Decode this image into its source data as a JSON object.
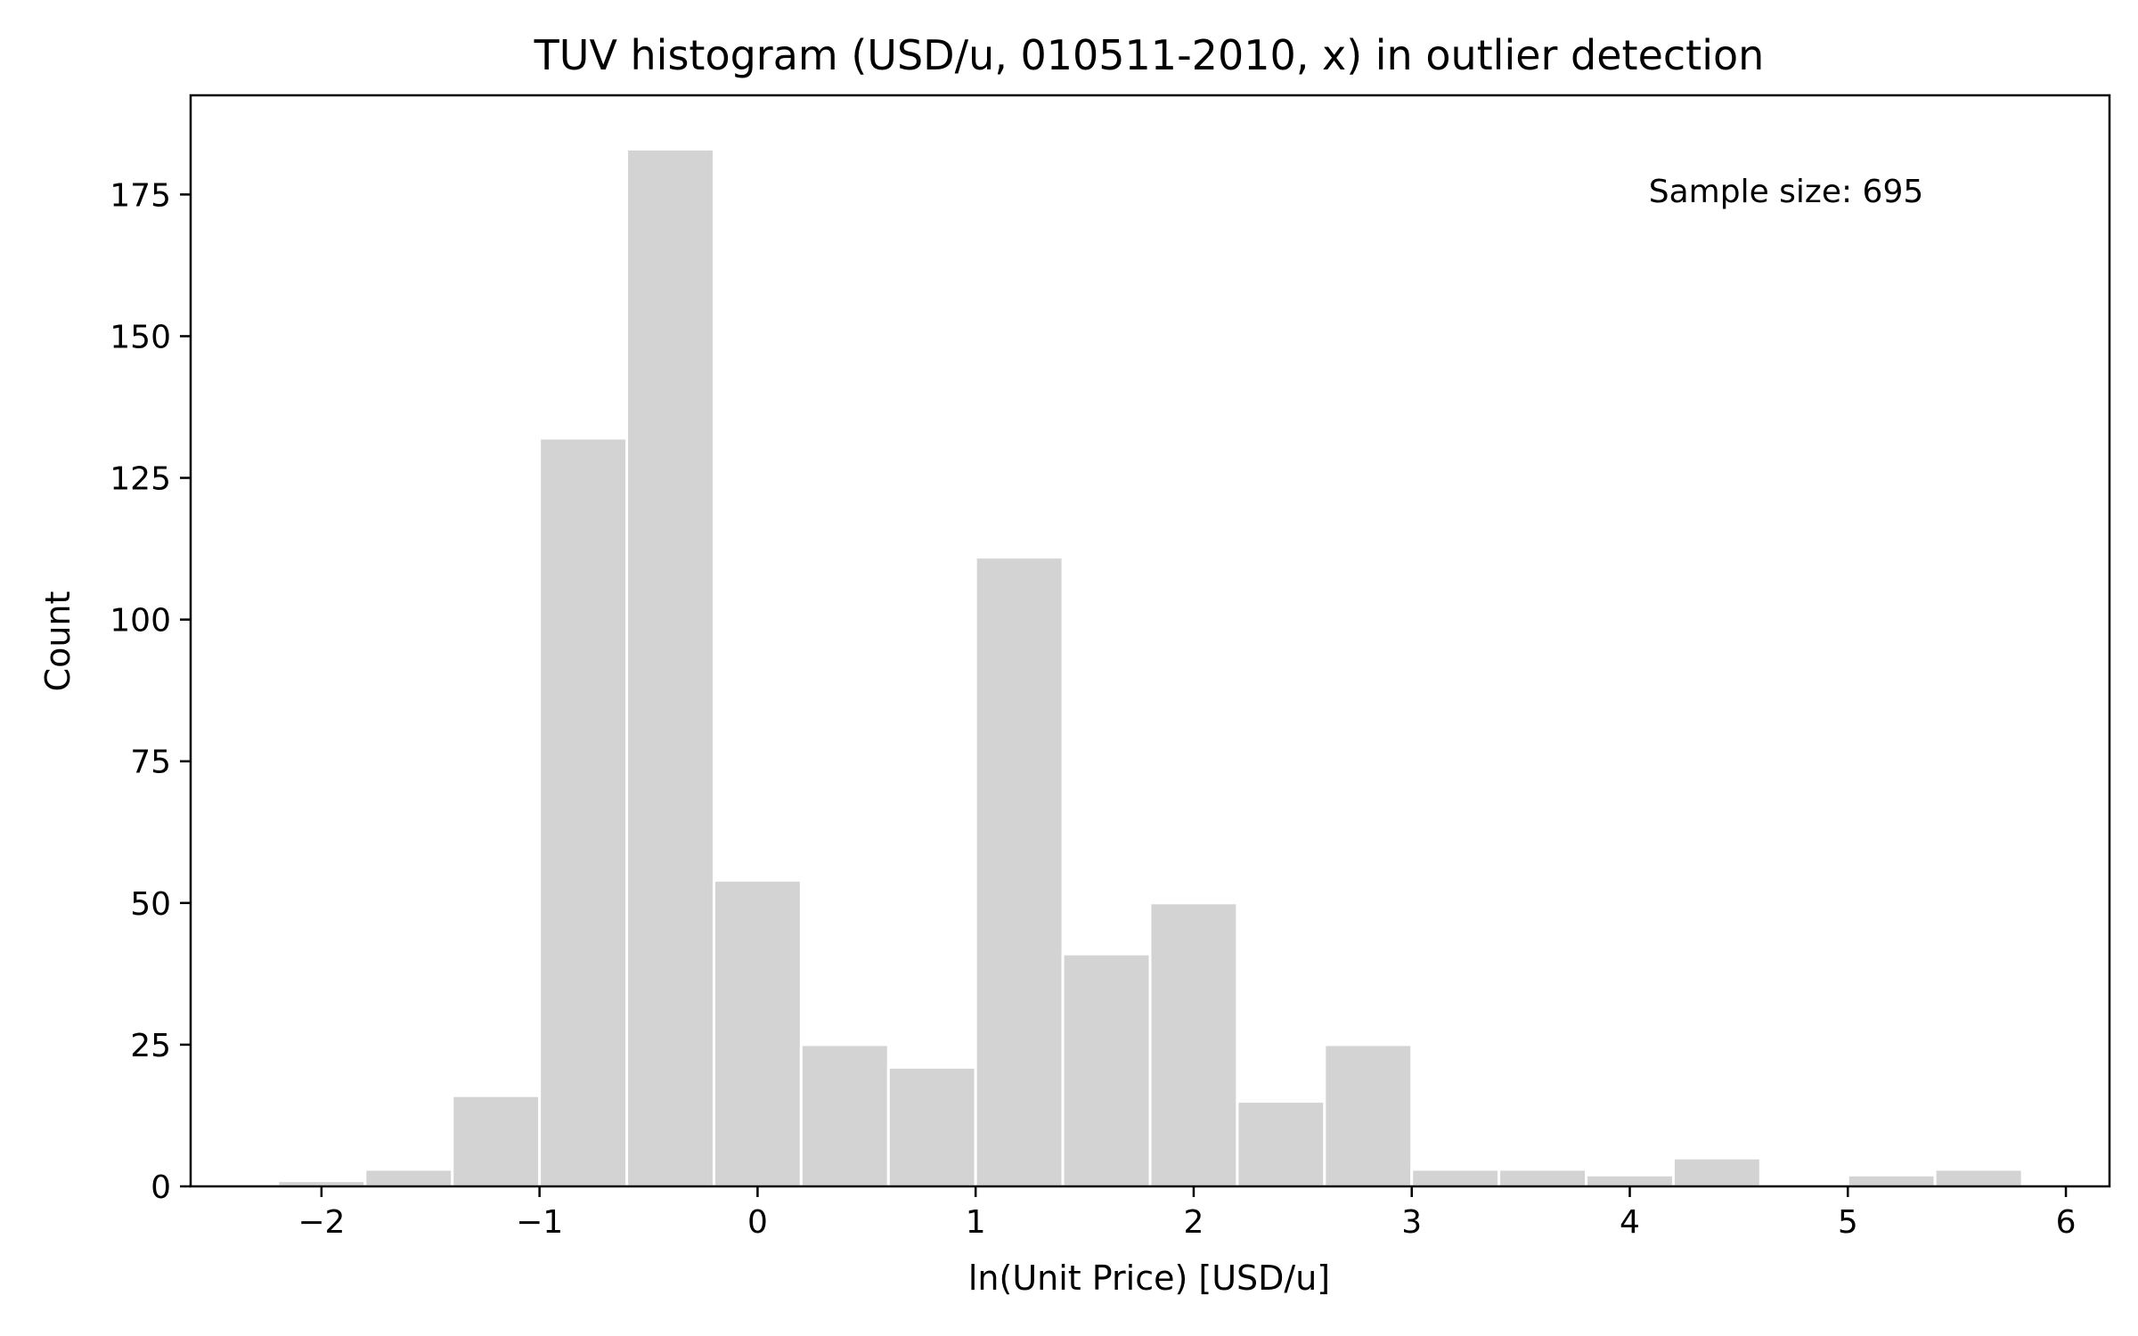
{
  "chart_data": {
    "type": "bar",
    "title": "TUV histogram (USD/u, 010511-2010, x) in outlier detection",
    "xlabel": "ln(Unit Price) [USD/u]",
    "ylabel": "Count",
    "annotation": "Sample size: 695",
    "xlim": [
      -2.6,
      6.2
    ],
    "ylim": [
      0,
      192.5
    ],
    "bin_width": 0.4,
    "bin_edges_start": -2.2,
    "counts": [
      1,
      3,
      16,
      132,
      183,
      54,
      25,
      21,
      111,
      41,
      50,
      15,
      25,
      3,
      3,
      2,
      5,
      0,
      2,
      3
    ],
    "x_ticks": [
      -2,
      -1,
      0,
      1,
      2,
      3,
      4,
      5,
      6
    ],
    "x_tick_labels": [
      "−2",
      "−1",
      "0",
      "1",
      "2",
      "3",
      "4",
      "5",
      "6"
    ],
    "y_ticks": [
      0,
      25,
      50,
      75,
      100,
      125,
      150,
      175
    ],
    "y_tick_labels": [
      "0",
      "25",
      "50",
      "75",
      "100",
      "125",
      "150",
      "175"
    ],
    "bar_color": "#d3d3d3",
    "bar_edge_color": "#ffffff",
    "grid": false,
    "legend": "none"
  }
}
